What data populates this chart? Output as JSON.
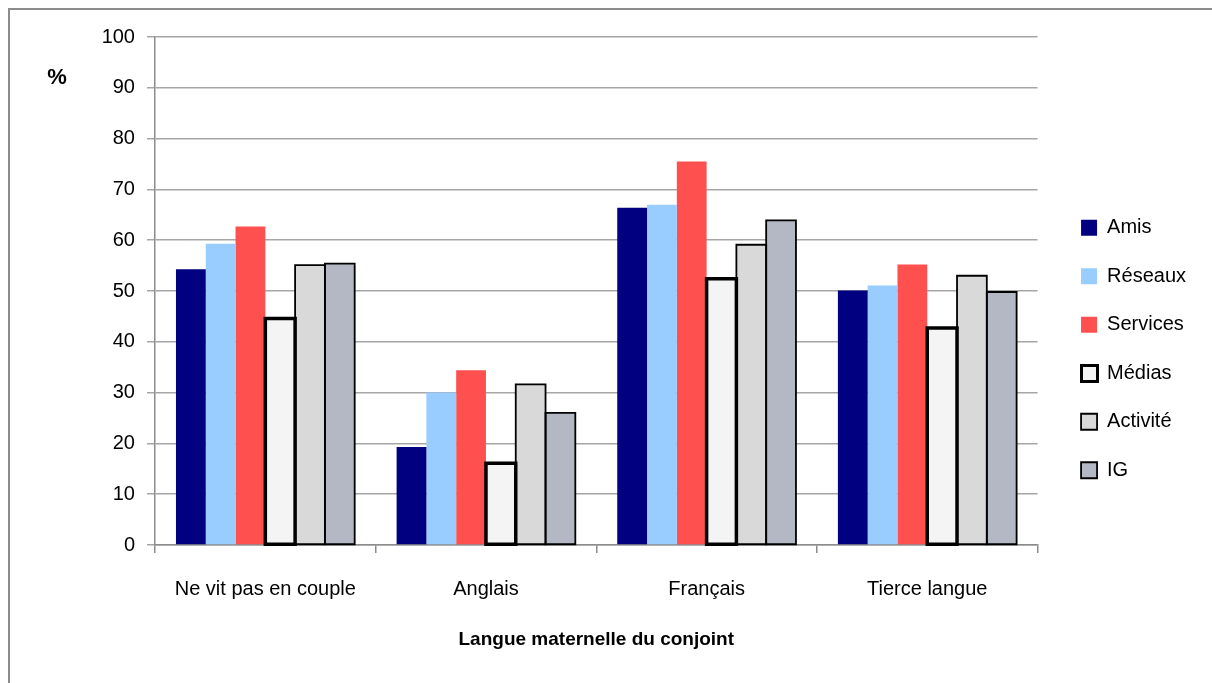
{
  "chart_data": {
    "type": "bar",
    "xlabel": "Langue maternelle du conjoint",
    "ylabel": "%",
    "categories": [
      "Ne vit pas en couple",
      "Anglais",
      "Français",
      "Tierce langue"
    ],
    "series": [
      {
        "name": "Amis",
        "color": "#000080",
        "values": [
          54.3,
          19.3,
          66.4,
          50.1
        ]
      },
      {
        "name": "Réseaux",
        "color": "#99ccff",
        "values": [
          59.3,
          30.0,
          67.0,
          51.1
        ]
      },
      {
        "name": "Services",
        "color": "#ff5050",
        "values": [
          62.7,
          34.4,
          75.5,
          55.2
        ]
      },
      {
        "name": "Médias",
        "color": "#f4f4f4",
        "values": [
          44.6,
          16.1,
          52.4,
          42.7
        ]
      },
      {
        "name": "Activité",
        "color": "#d9d9d9",
        "values": [
          55.1,
          31.6,
          59.1,
          53.0
        ]
      },
      {
        "name": "IG",
        "color": "#b4b8c4",
        "values": [
          55.4,
          26.0,
          63.9,
          49.8
        ]
      }
    ],
    "ylim": [
      0,
      100
    ],
    "yticks": [
      0,
      10,
      20,
      30,
      40,
      50,
      60,
      70,
      80,
      90,
      100
    ],
    "grid": "y",
    "legend": "right"
  }
}
